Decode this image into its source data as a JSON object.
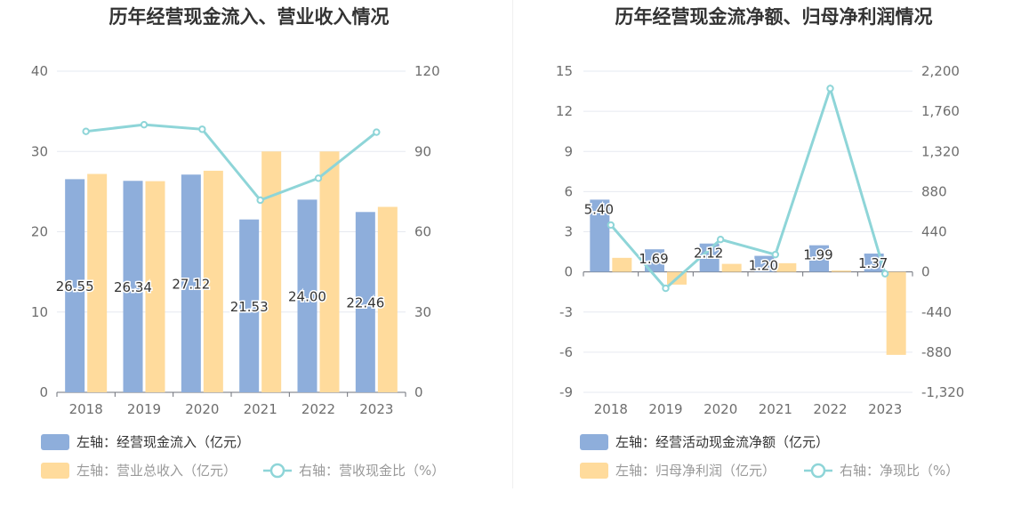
{
  "chart_data": [
    {
      "type": "bar",
      "title": "历年经营现金流入、营业收入情况",
      "categories": [
        "2018",
        "2019",
        "2020",
        "2021",
        "2022",
        "2023"
      ],
      "y_left": {
        "range": [
          0,
          40
        ],
        "ticks": [
          "0",
          "10",
          "20",
          "30",
          "40"
        ]
      },
      "y_right": {
        "range": [
          0,
          120
        ],
        "ticks": [
          "0",
          "30",
          "60",
          "90",
          "120"
        ]
      },
      "series": [
        {
          "name": "左轴：经营现金流入（亿元）",
          "type": "bar",
          "axis": "left",
          "color": "#8eaedb",
          "values": [
            26.55,
            26.34,
            27.12,
            21.53,
            24.0,
            22.46
          ],
          "labels": [
            "26.55",
            "26.34",
            "27.12",
            "21.53",
            "24.00",
            "22.46"
          ]
        },
        {
          "name": "左轴：营业总收入（亿元）",
          "type": "bar",
          "axis": "left",
          "color": "#ffdb9c",
          "values": [
            27.2,
            26.3,
            27.6,
            30.0,
            30.0,
            23.1
          ]
        },
        {
          "name": "右轴：营收现金比（%）",
          "type": "line",
          "axis": "right",
          "color": "#8ed5d8",
          "values": [
            97.5,
            100.0,
            98.3,
            71.8,
            80.0,
            97.2
          ]
        }
      ]
    },
    {
      "type": "bar",
      "title": "历年经营现金流净额、归母净利润情况",
      "categories": [
        "2018",
        "2019",
        "2020",
        "2021",
        "2022",
        "2023"
      ],
      "y_left": {
        "range": [
          -9,
          15
        ],
        "ticks": [
          "-9",
          "-6",
          "-3",
          "0",
          "3",
          "6",
          "9",
          "12",
          "15"
        ]
      },
      "y_right": {
        "range": [
          -1320,
          2200
        ],
        "ticks": [
          "-1,320",
          "-880",
          "-440",
          "0",
          "440",
          "880",
          "1,320",
          "1,760",
          "2,200"
        ]
      },
      "series": [
        {
          "name": "左轴：经营活动现金流净额（亿元）",
          "type": "bar",
          "axis": "left",
          "color": "#8eaedb",
          "values": [
            5.4,
            1.69,
            2.12,
            1.2,
            1.99,
            1.37
          ],
          "labels": [
            "5.40",
            "1.69",
            "2.12",
            "1.20",
            "1.99",
            "1.37"
          ]
        },
        {
          "name": "左轴：归母净利润（亿元）",
          "type": "bar",
          "axis": "left",
          "color": "#ffdb9c",
          "values": [
            1.05,
            -0.95,
            0.6,
            0.65,
            0.1,
            -6.2
          ]
        },
        {
          "name": "右轴：净现比（%）",
          "type": "line",
          "axis": "right",
          "color": "#8ed5d8",
          "values": [
            514,
            -180,
            355,
            190,
            2010,
            -20
          ]
        }
      ]
    }
  ],
  "style": {
    "grid_color": "#e6e9f0",
    "axis_color": "#6e7079",
    "legend_text_color": "#333333",
    "legend_text_muted": "#999999"
  }
}
